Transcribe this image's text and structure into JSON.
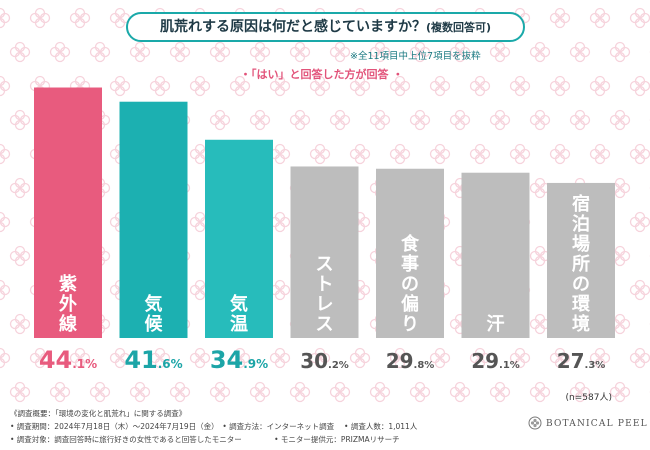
{
  "header": {
    "title": "肌荒れする原因は何だと感じていますか？",
    "title_suffix": "(複数回答可)",
    "note": "※全11項目中上位7項目を抜粋",
    "condition": "・「はい」と回答した方が回答 ・"
  },
  "chart_data": {
    "type": "bar",
    "categories": [
      "紫外線",
      "気候",
      "気温",
      "ストレス",
      "食事の偏り",
      "汗",
      "宿泊場所の環境"
    ],
    "values": [
      44.1,
      41.6,
      34.9,
      30.2,
      29.8,
      29.1,
      27.3
    ],
    "value_labels": [
      {
        "int": "44",
        "dec": ".1%"
      },
      {
        "int": "41",
        "dec": ".6%"
      },
      {
        "int": "34",
        "dec": ".9%"
      },
      {
        "int": "30",
        "dec": ".2%"
      },
      {
        "int": "29",
        "dec": ".8%"
      },
      {
        "int": "29",
        "dec": ".1%"
      },
      {
        "int": "27",
        "dec": ".3%"
      }
    ],
    "bar_colors": [
      "#e85b7e",
      "#1cb0b1",
      "#27bcbb",
      "#bdbdbd",
      "#bdbdbd",
      "#bdbdbd",
      "#bdbdbd"
    ],
    "label_colors": [
      "#e85b7e",
      "#1ca5a7",
      "#1ca5a7",
      "#555555",
      "#555555",
      "#555555",
      "#555555"
    ],
    "category_text_colors": [
      "#ffffff",
      "#ffffff",
      "#ffffff",
      "#ffffff",
      "#ffffff",
      "#ffffff",
      "#ffffff"
    ],
    "ylim": [
      0,
      50
    ],
    "title": "肌荒れする原因は何だと感じていますか？(複数回答可)",
    "xlabel": "",
    "ylabel": "",
    "sample_size": "(n=587人)"
  },
  "footer": {
    "lines": [
      "《調査概要：「環境の変化と肌荒れ」に関する調査》",
      "• 調査期間：2024年7月18日（木）〜2024年7月19日（金）　•  調査方法：インターネット調査　 •  調査人数：1,011人",
      "• 調査対象：調査回答時に旅行好きの女性であると回答したモニター　　　　 •  モニター提供元：PRIZMAリサーチ"
    ],
    "logo_text": "BOTANICAL PEEL"
  },
  "colors": {
    "accent_pink": "#e85b7e",
    "accent_teal": "#1aa9a9",
    "gray_bar": "#bdbdbd"
  }
}
